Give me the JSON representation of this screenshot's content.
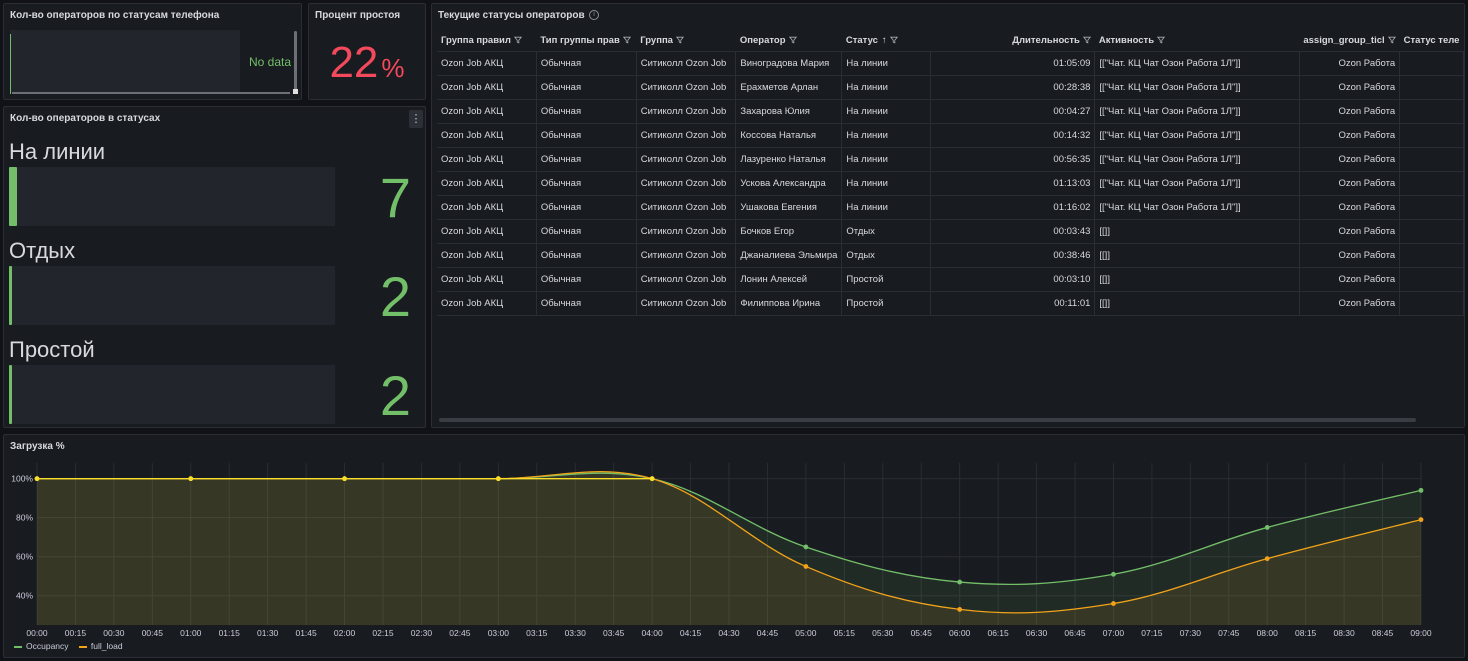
{
  "panels": {
    "phone_status": {
      "title": "Кол-во операторов по статусам телефона",
      "no_data": "No data"
    },
    "idle_percent": {
      "title": "Процент простоя",
      "value": "22",
      "unit": "%",
      "color": "#f2495c"
    },
    "status_counts": {
      "title": "Кол-во операторов в статусах",
      "items": [
        {
          "label": "На линии",
          "value": "7",
          "level": 0.03
        },
        {
          "label": "Отдых",
          "value": "2",
          "level": 0.008
        },
        {
          "label": "Простой",
          "value": "2",
          "level": 0.008
        }
      ]
    },
    "current_status": {
      "title": "Текущие статусы операторов",
      "columns": [
        "Группа правил",
        "Тип группы прав",
        "Группа",
        "Оператор",
        "Статус",
        "Длительность",
        "Активность",
        "assign_group_ticl",
        "Статус теле"
      ],
      "sort_indicator": "↑",
      "rows": [
        [
          "Ozon Job АКЦ",
          "Обычная",
          "Ситиколл Ozon Job",
          "Виноградова Мария",
          "На линии",
          "01:05:09",
          "[[\"Чат. КЦ Чат Озон Работа 1Л\"]]",
          "Ozon Работа",
          ""
        ],
        [
          "Ozon Job АКЦ",
          "Обычная",
          "Ситиколл Ozon Job",
          "Ерахметов Арлан",
          "На линии",
          "00:28:38",
          "[[\"Чат. КЦ Чат Озон Работа 1Л\"]]",
          "Ozon Работа",
          ""
        ],
        [
          "Ozon Job АКЦ",
          "Обычная",
          "Ситиколл Ozon Job",
          "Захарова Юлия",
          "На линии",
          "00:04:27",
          "[[\"Чат. КЦ Чат Озон Работа 1Л\"]]",
          "Ozon Работа",
          ""
        ],
        [
          "Ozon Job АКЦ",
          "Обычная",
          "Ситиколл Ozon Job",
          "Коссова Наталья",
          "На линии",
          "00:14:32",
          "[[\"Чат. КЦ Чат Озон Работа 1Л\"]]",
          "Ozon Работа",
          ""
        ],
        [
          "Ozon Job АКЦ",
          "Обычная",
          "Ситиколл Ozon Job",
          "Лазуренко Наталья",
          "На линии",
          "00:56:35",
          "[[\"Чат. КЦ Чат Озон Работа 1Л\"]]",
          "Ozon Работа",
          ""
        ],
        [
          "Ozon Job АКЦ",
          "Обычная",
          "Ситиколл Ozon Job",
          "Ускова Александра",
          "На линии",
          "01:13:03",
          "[[\"Чат. КЦ Чат Озон Работа 1Л\"]]",
          "Ozon Работа",
          ""
        ],
        [
          "Ozon Job АКЦ",
          "Обычная",
          "Ситиколл Ozon Job",
          "Ушакова Евгения",
          "На линии",
          "01:16:02",
          "[[\"Чат. КЦ Чат Озон Работа 1Л\"]]",
          "Ozon Работа",
          ""
        ],
        [
          "Ozon Job АКЦ",
          "Обычная",
          "Ситиколл Ozon Job",
          "Бочков Егор",
          "Отдых",
          "00:03:43",
          "[[]]",
          "Ozon Работа",
          ""
        ],
        [
          "Ozon Job АКЦ",
          "Обычная",
          "Ситиколл Ozon Job",
          "Джаналиева Эльмира",
          "Отдых",
          "00:38:46",
          "[[]]",
          "Ozon Работа",
          ""
        ],
        [
          "Ozon Job АКЦ",
          "Обычная",
          "Ситиколл Ozon Job",
          "Лонин Алексей",
          "Простой",
          "00:03:10",
          "[[]]",
          "Ozon Работа",
          ""
        ],
        [
          "Ozon Job АКЦ",
          "Обычная",
          "Ситиколл Ozon Job",
          "Филиппова Ирина",
          "Простой",
          "00:11:01",
          "[[]]",
          "Ozon Работа",
          ""
        ]
      ]
    },
    "load": {
      "title": "Загрузка %"
    }
  },
  "colors": {
    "green": "#73bf69",
    "yellow": "#fade2a",
    "orange": "#f2a31a",
    "red": "#f2495c"
  },
  "chart_data": {
    "type": "line",
    "title": "Загрузка %",
    "x": [
      "00:00",
      "00:15",
      "00:30",
      "00:45",
      "01:00",
      "01:15",
      "01:30",
      "01:45",
      "02:00",
      "02:15",
      "02:30",
      "02:45",
      "03:00",
      "03:15",
      "03:30",
      "03:45",
      "04:00",
      "04:15",
      "04:30",
      "04:45",
      "05:00",
      "05:15",
      "05:30",
      "05:45",
      "06:00",
      "06:15",
      "06:30",
      "06:45",
      "07:00",
      "07:15",
      "07:30",
      "07:45",
      "08:00",
      "08:15",
      "08:30",
      "08:45",
      "09:00"
    ],
    "y_ticks": [
      "100%",
      "80%",
      "60%",
      "40%"
    ],
    "ylim": [
      25,
      107
    ],
    "grid": true,
    "legend_position": "bottom-left",
    "series": [
      {
        "name": "Occupancy",
        "color": "#73bf69",
        "points": [
          [
            "00:00",
            100
          ],
          [
            "01:00",
            100
          ],
          [
            "02:00",
            100
          ],
          [
            "03:00",
            100
          ],
          [
            "04:00",
            100
          ],
          [
            "05:00",
            65
          ],
          [
            "06:00",
            47
          ],
          [
            "07:00",
            51
          ],
          [
            "08:00",
            75
          ],
          [
            "09:00",
            94
          ]
        ]
      },
      {
        "name": "full_load",
        "color": "#f2a31a",
        "points": [
          [
            "00:00",
            100
          ],
          [
            "01:00",
            100
          ],
          [
            "02:00",
            100
          ],
          [
            "03:00",
            100
          ],
          [
            "04:00",
            100
          ],
          [
            "05:00",
            55
          ],
          [
            "06:00",
            33
          ],
          [
            "07:00",
            36
          ],
          [
            "08:00",
            59
          ],
          [
            "09:00",
            79
          ]
        ]
      }
    ]
  }
}
